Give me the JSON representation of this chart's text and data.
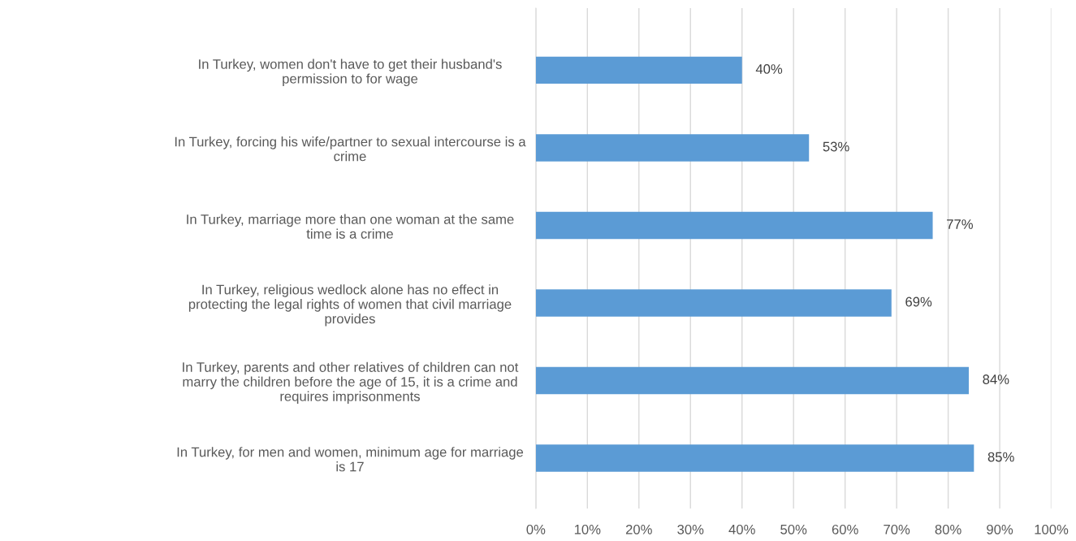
{
  "chart_data": {
    "type": "bar",
    "orientation": "horizontal",
    "categories": [
      "In Turkey, women don't have to get their husband's\npermission to for wage",
      "In Turkey, forcing his wife/partner to sexual intercourse is a\ncrime",
      "In Turkey, marriage more than one woman at the same\ntime is a crime",
      "In Turkey, religious wedlock alone has no effect in\nprotecting the legal rights of women that civil marriage\nprovides",
      "In Turkey, parents and other relatives of children can not\nmarry the children before the age of 15, it is a crime and\nrequires imprisonments",
      "In Turkey, for men and women, minimum age for marriage\nis 17"
    ],
    "values": [
      40,
      53,
      77,
      69,
      84,
      85
    ],
    "value_labels": [
      "40%",
      "53%",
      "77%",
      "69%",
      "84%",
      "85%"
    ],
    "color": "#5b9bd5",
    "xlim": [
      0,
      100
    ],
    "xticks": [
      {
        "value": 0,
        "label": "0%"
      },
      {
        "value": 10,
        "label": "10%"
      },
      {
        "value": 20,
        "label": "20%"
      },
      {
        "value": 30,
        "label": "30%"
      },
      {
        "value": 40,
        "label": "40%"
      },
      {
        "value": 50,
        "label": "50%"
      },
      {
        "value": 60,
        "label": "60%"
      },
      {
        "value": 70,
        "label": "70%"
      },
      {
        "value": 80,
        "label": "80%"
      },
      {
        "value": 90,
        "label": "90%"
      },
      {
        "value": 100,
        "label": "100%"
      }
    ],
    "grid": "x",
    "legend": false
  }
}
